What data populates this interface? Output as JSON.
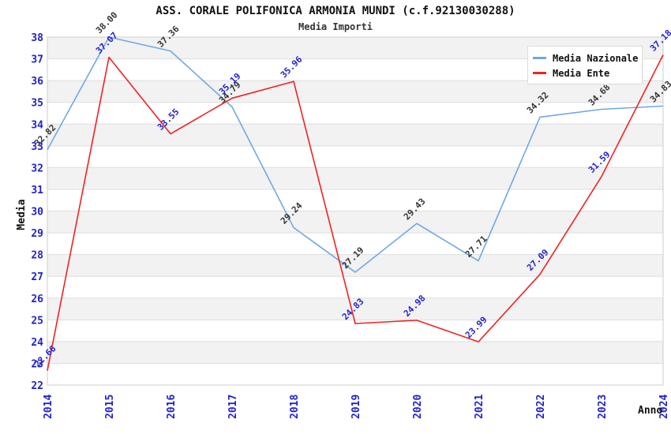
{
  "header": {
    "title": "ASS. CORALE POLIFONICA ARMONIA MUNDI (c.f.92130030288)",
    "subtitle": "Media Importi"
  },
  "chart_data": {
    "type": "line",
    "title": "ASS. CORALE POLIFONICA ARMONIA MUNDI (c.f.92130030288)",
    "subtitle": "Media Importi",
    "xlabel": "Anno",
    "ylabel": "Media",
    "categories": [
      "2014",
      "2015",
      "2016",
      "2017",
      "2018",
      "2019",
      "2020",
      "2021",
      "2022",
      "2023",
      "2024"
    ],
    "series": [
      {
        "name": "Media Nazionale",
        "color": "#6FA8E3",
        "label_color": "#333333",
        "values": [
          32.82,
          38.0,
          37.36,
          34.79,
          29.24,
          27.19,
          29.43,
          27.71,
          34.32,
          34.68,
          34.83
        ]
      },
      {
        "name": "Media Ente",
        "color": "#F02222",
        "label_color": "#2222CC",
        "values": [
          22.66,
          37.07,
          33.55,
          35.19,
          35.96,
          24.83,
          24.98,
          23.99,
          27.09,
          31.59,
          37.18
        ]
      }
    ],
    "ylim": [
      22,
      38
    ],
    "y_tick_step": 1,
    "grid": "horizontal-bands",
    "legend_position": "top-right",
    "axis_tick_color": "#2222CC",
    "band_color": "#F2F2F2",
    "gridline_color": "#DDDDDD",
    "border_color": "#CCCCCC",
    "axis_title_color": "#111111"
  }
}
